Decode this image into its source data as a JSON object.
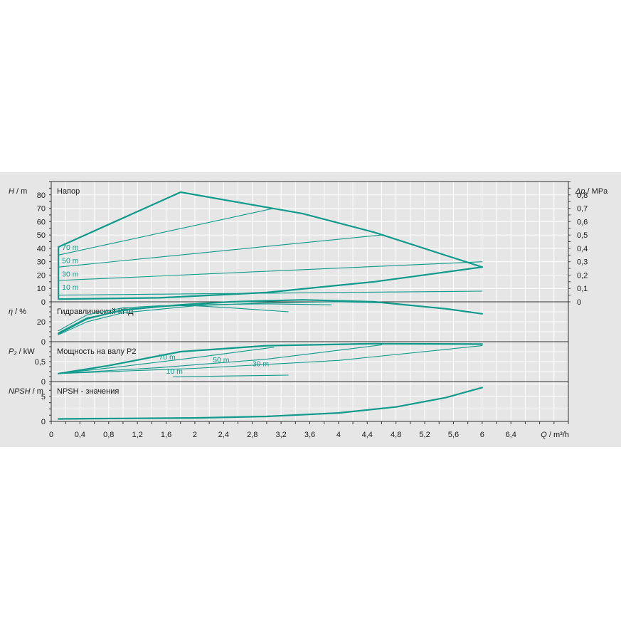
{
  "colors": {
    "background": "#e6e6e6",
    "plot_background": "#ececec",
    "curve": "#109a8c",
    "grid": "#ffffff",
    "axis": "#333333"
  },
  "chart_data": [
    {
      "id": "head",
      "type": "line",
      "title": "Напор",
      "ylabel": "H / m",
      "ylabel_symbol": "H",
      "ylabel_unit": " / m",
      "xlim": [
        0,
        7.2
      ],
      "ylim": [
        0,
        90
      ],
      "yticks": [
        0,
        10,
        20,
        30,
        40,
        50,
        60,
        70,
        80
      ],
      "secondary_axis": {
        "label": "Δp / MPa",
        "symbol": "Δp",
        "unit": " / MPa",
        "ylim": [
          0,
          0.9
        ],
        "ticks": [
          "0",
          "0,1",
          "0,2",
          "0,3",
          "0,4",
          "0,5",
          "0,6",
          "0,7",
          "0,8"
        ]
      },
      "curve_labels": [
        {
          "text": "10 m",
          "x": 0.15,
          "y": 9
        },
        {
          "text": "30 m",
          "x": 0.15,
          "y": 19
        },
        {
          "text": "50 m",
          "x": 0.15,
          "y": 29
        },
        {
          "text": "70 m",
          "x": 0.15,
          "y": 39
        }
      ],
      "series": [
        {
          "style": "thick",
          "x": [
            0.1,
            1.8,
            3.5,
            4.5,
            6.0
          ],
          "y": [
            41,
            82,
            66,
            52,
            26
          ]
        },
        {
          "style": "thick",
          "x": [
            0.1,
            0.1,
            0.1,
            1.5,
            3.0,
            4.5,
            6.0
          ],
          "y": [
            41,
            25,
            2,
            3,
            7,
            15,
            26
          ]
        },
        {
          "style": "thin",
          "x": [
            0.1,
            3.1
          ],
          "y": [
            35,
            70
          ]
        },
        {
          "style": "thin",
          "x": [
            0.1,
            4.6
          ],
          "y": [
            26,
            50
          ]
        },
        {
          "style": "thin",
          "x": [
            0.1,
            6.0
          ],
          "y": [
            16,
            30
          ]
        },
        {
          "style": "thin",
          "x": [
            0.1,
            6.0
          ],
          "y": [
            5,
            8
          ]
        }
      ]
    },
    {
      "id": "efficiency",
      "type": "line",
      "title": "Гидравлический КПД",
      "ylabel": "η / %",
      "ylabel_symbol": "η",
      "ylabel_unit": " / %",
      "xlim": [
        0,
        7.2
      ],
      "ylim": [
        0,
        40
      ],
      "yticks": [
        0,
        20
      ],
      "series": [
        {
          "style": "thick",
          "x": [
            0.1,
            0.5,
            1.0,
            1.8,
            2.5,
            3.5,
            4.5,
            5.5,
            6.0
          ],
          "y": [
            8,
            23,
            32,
            37,
            40,
            42,
            40,
            33,
            28
          ]
        },
        {
          "style": "thin",
          "x": [
            0.1,
            0.5,
            1.0,
            1.5,
            2.0,
            2.5,
            3.3
          ],
          "y": [
            11,
            27,
            34,
            36,
            36,
            34,
            30
          ]
        },
        {
          "style": "thin",
          "x": [
            0.1,
            0.5,
            1.0,
            1.5,
            2.0,
            3.0,
            3.9
          ],
          "y": [
            9,
            24,
            31,
            35,
            37,
            38,
            37
          ]
        },
        {
          "style": "thin",
          "x": [
            0.1,
            0.5,
            1.0,
            2.0,
            3.0,
            4.0,
            4.6
          ],
          "y": [
            7,
            20,
            29,
            36,
            39,
            40,
            39
          ]
        }
      ]
    },
    {
      "id": "power",
      "type": "line",
      "title": "Мощность на валу P2",
      "ylabel": "P₂ / kW",
      "ylabel_symbol": "P₂",
      "ylabel_unit": " / kW",
      "xlim": [
        0,
        7.2
      ],
      "ylim": [
        0,
        1.0
      ],
      "yticks": [
        0,
        0.5
      ],
      "ytick_labels": [
        "0",
        "0,5"
      ],
      "curve_labels": [
        {
          "text": "70 m",
          "x": 1.5,
          "y": 0.55
        },
        {
          "text": "50 m",
          "x": 2.25,
          "y": 0.48
        },
        {
          "text": "30 m",
          "x": 2.8,
          "y": 0.38
        },
        {
          "text": "10 m",
          "x": 1.6,
          "y": 0.2
        }
      ],
      "series": [
        {
          "style": "thick",
          "x": [
            0.1,
            0.8,
            1.8,
            3.0,
            4.5,
            6.0
          ],
          "y": [
            0.2,
            0.4,
            0.75,
            0.9,
            0.95,
            0.94
          ]
        },
        {
          "style": "thin",
          "x": [
            0.1,
            1.0,
            2.0,
            3.1
          ],
          "y": [
            0.2,
            0.38,
            0.6,
            0.86
          ]
        },
        {
          "style": "thin",
          "x": [
            0.1,
            1.5,
            3.0,
            4.6
          ],
          "y": [
            0.2,
            0.35,
            0.56,
            0.92
          ]
        },
        {
          "style": "thin",
          "x": [
            0.1,
            2.0,
            4.0,
            6.0
          ],
          "y": [
            0.2,
            0.33,
            0.53,
            0.9
          ]
        },
        {
          "style": "thin",
          "x": [
            1.7,
            3.3
          ],
          "y": [
            0.12,
            0.16
          ]
        }
      ]
    },
    {
      "id": "npsh",
      "type": "line",
      "title": "NPSH - значения",
      "ylabel": "NPSH / m",
      "ylabel_symbol": "NPSH",
      "ylabel_unit": " / m",
      "xlim": [
        0,
        7.2
      ],
      "ylim": [
        0,
        8
      ],
      "yticks": [
        0,
        5
      ],
      "series": [
        {
          "style": "thick",
          "x": [
            0.1,
            1.0,
            2.0,
            3.0,
            4.0,
            4.8,
            5.5,
            6.0
          ],
          "y": [
            0.5,
            0.6,
            0.7,
            1.0,
            1.7,
            2.9,
            4.8,
            6.8
          ]
        }
      ]
    }
  ],
  "x_axis": {
    "label": "Q / m³/h",
    "symbol": "Q",
    "unit": " / m³/h",
    "tick_values": [
      0,
      0.4,
      0.8,
      1.2,
      1.6,
      2.0,
      2.4,
      2.8,
      3.2,
      3.6,
      4.0,
      4.4,
      4.8,
      5.2,
      5.6,
      6.0,
      6.4
    ],
    "tick_labels": [
      "0",
      "0,4",
      "0,8",
      "1,2",
      "1,6",
      "2",
      "2,4",
      "2,8",
      "3,2",
      "3,6",
      "4",
      "4,4",
      "4,8",
      "5,2",
      "5,6",
      "6",
      "6,4"
    ]
  }
}
